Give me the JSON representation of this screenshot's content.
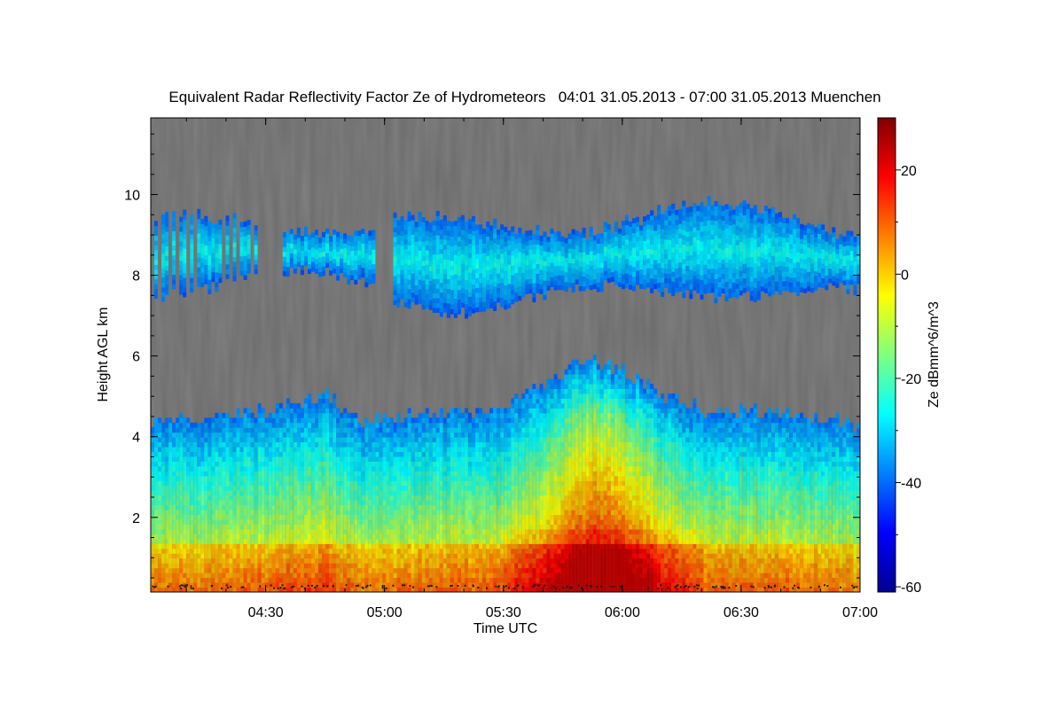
{
  "chart_data": {
    "type": "heatmap",
    "title": "Equivalent Radar Reflectivity Factor Ze of Hydrometeors   04:01 31.05.2013 - 07:00 31.05.2013 Muenchen",
    "xlabel": "Time UTC",
    "ylabel": "Height AGL km",
    "colorbar_label": "Ze dBmm^6/m^3",
    "x_ticks": [
      "04:30",
      "05:00",
      "05:30",
      "06:00",
      "06:30",
      "07:00"
    ],
    "x_tick_minutes": [
      30,
      60,
      90,
      120,
      150,
      180
    ],
    "xlim_minutes": [
      1,
      180
    ],
    "y_ticks": [
      2,
      4,
      6,
      8,
      10
    ],
    "ylim": [
      0.15,
      11.9
    ],
    "colorbar_ticks": [
      20,
      0,
      -20,
      -40,
      -60
    ],
    "colorbar_range": [
      -61,
      30
    ],
    "background_color": "#808080",
    "colormap": "jet",
    "features": [
      {
        "name": "upper cloud layer",
        "height_range_km": [
          7.0,
          9.4
        ],
        "ze_range": [
          -40,
          -25
        ]
      },
      {
        "name": "lower cloud / precipitation",
        "height_range_km": [
          0.15,
          5.6
        ],
        "ze_range": [
          -40,
          25
        ]
      },
      {
        "name": "cloud top lower layer",
        "minutes": [
          0,
          15,
          30,
          45,
          55,
          60,
          90,
          110,
          120,
          140,
          165,
          180
        ],
        "top_km": [
          4.4,
          4.4,
          4.6,
          4.95,
          4.3,
          4.4,
          4.7,
          5.5,
          5.2,
          4.6,
          4.5,
          4.2
        ]
      }
    ]
  }
}
